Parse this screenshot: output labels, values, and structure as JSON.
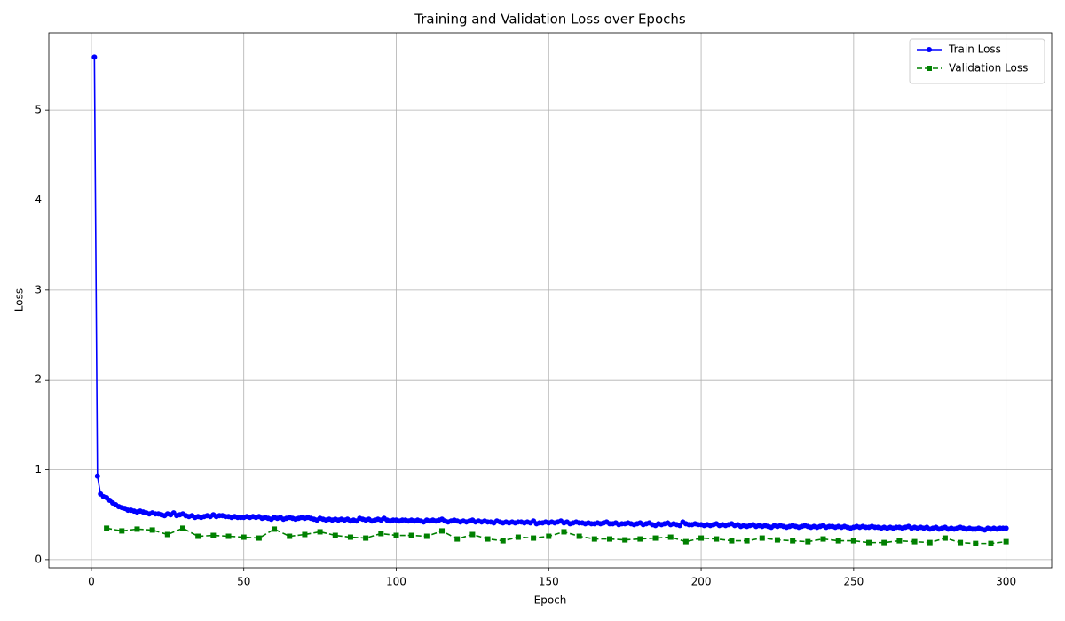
{
  "chart_data": {
    "type": "line",
    "title": "Training and Validation Loss over Epochs",
    "x_label": "Epoch",
    "y_label": "Loss",
    "xlim": [
      -13.95,
      314.95
    ],
    "ylim": [
      -0.09,
      5.86
    ],
    "xticks": [
      0,
      50,
      100,
      150,
      200,
      250,
      300
    ],
    "yticks": [
      0,
      1,
      2,
      3,
      4,
      5
    ],
    "grid": true,
    "legend": "upper right",
    "series": [
      {
        "name": "Train Loss",
        "color": "#0000ff",
        "marker": "circle",
        "linestyle": "solid",
        "x": [
          1,
          2,
          3,
          4,
          5,
          6,
          7,
          8,
          9,
          10,
          11,
          12,
          13,
          14,
          15,
          16,
          17,
          18,
          19,
          20,
          21,
          22,
          23,
          24,
          25,
          26,
          27,
          28,
          29,
          30,
          31,
          32,
          33,
          34,
          35,
          36,
          37,
          38,
          39,
          40,
          41,
          42,
          43,
          44,
          45,
          46,
          47,
          48,
          49,
          50,
          51,
          52,
          53,
          54,
          55,
          56,
          57,
          58,
          59,
          60,
          61,
          62,
          63,
          64,
          65,
          66,
          67,
          68,
          69,
          70,
          71,
          72,
          73,
          74,
          75,
          76,
          77,
          78,
          79,
          80,
          81,
          82,
          83,
          84,
          85,
          86,
          87,
          88,
          89,
          90,
          91,
          92,
          93,
          94,
          95,
          96,
          97,
          98,
          99,
          100,
          101,
          102,
          103,
          104,
          105,
          106,
          107,
          108,
          109,
          110,
          111,
          112,
          113,
          114,
          115,
          116,
          117,
          118,
          119,
          120,
          121,
          122,
          123,
          124,
          125,
          126,
          127,
          128,
          129,
          130,
          131,
          132,
          133,
          134,
          135,
          136,
          137,
          138,
          139,
          140,
          141,
          142,
          143,
          144,
          145,
          146,
          147,
          148,
          149,
          150,
          151,
          152,
          153,
          154,
          155,
          156,
          157,
          158,
          159,
          160,
          161,
          162,
          163,
          164,
          165,
          166,
          167,
          168,
          169,
          170,
          171,
          172,
          173,
          174,
          175,
          176,
          177,
          178,
          179,
          180,
          181,
          182,
          183,
          184,
          185,
          186,
          187,
          188,
          189,
          190,
          191,
          192,
          193,
          194,
          195,
          196,
          197,
          198,
          199,
          200,
          201,
          202,
          203,
          204,
          205,
          206,
          207,
          208,
          209,
          210,
          211,
          212,
          213,
          214,
          215,
          216,
          217,
          218,
          219,
          220,
          221,
          222,
          223,
          224,
          225,
          226,
          227,
          228,
          229,
          230,
          231,
          232,
          233,
          234,
          235,
          236,
          237,
          238,
          239,
          240,
          241,
          242,
          243,
          244,
          245,
          246,
          247,
          248,
          249,
          250,
          251,
          252,
          253,
          254,
          255,
          256,
          257,
          258,
          259,
          260,
          261,
          262,
          263,
          264,
          265,
          266,
          267,
          268,
          269,
          270,
          271,
          272,
          273,
          274,
          275,
          276,
          277,
          278,
          279,
          280,
          281,
          282,
          283,
          284,
          285,
          286,
          287,
          288,
          289,
          290,
          291,
          292,
          293,
          294,
          295,
          296,
          297,
          298,
          299,
          300
        ],
        "values": [
          5.59,
          0.93,
          0.73,
          0.7,
          0.69,
          0.66,
          0.63,
          0.61,
          0.59,
          0.58,
          0.57,
          0.55,
          0.55,
          0.54,
          0.53,
          0.54,
          0.53,
          0.52,
          0.51,
          0.52,
          0.51,
          0.51,
          0.5,
          0.49,
          0.51,
          0.5,
          0.52,
          0.49,
          0.5,
          0.51,
          0.49,
          0.48,
          0.49,
          0.47,
          0.48,
          0.47,
          0.48,
          0.49,
          0.48,
          0.5,
          0.48,
          0.49,
          0.49,
          0.48,
          0.48,
          0.47,
          0.48,
          0.47,
          0.47,
          0.47,
          0.48,
          0.47,
          0.48,
          0.47,
          0.48,
          0.46,
          0.47,
          0.46,
          0.45,
          0.47,
          0.46,
          0.47,
          0.45,
          0.46,
          0.47,
          0.46,
          0.45,
          0.46,
          0.47,
          0.46,
          0.47,
          0.46,
          0.45,
          0.44,
          0.46,
          0.45,
          0.44,
          0.45,
          0.44,
          0.45,
          0.44,
          0.45,
          0.44,
          0.45,
          0.43,
          0.44,
          0.43,
          0.46,
          0.45,
          0.44,
          0.45,
          0.43,
          0.44,
          0.45,
          0.44,
          0.46,
          0.44,
          0.43,
          0.44,
          0.44,
          0.43,
          0.44,
          0.44,
          0.43,
          0.44,
          0.43,
          0.44,
          0.43,
          0.42,
          0.44,
          0.43,
          0.44,
          0.43,
          0.44,
          0.45,
          0.43,
          0.42,
          0.43,
          0.44,
          0.43,
          0.42,
          0.43,
          0.42,
          0.43,
          0.44,
          0.42,
          0.43,
          0.42,
          0.43,
          0.42,
          0.42,
          0.41,
          0.43,
          0.42,
          0.41,
          0.42,
          0.41,
          0.42,
          0.41,
          0.42,
          0.42,
          0.41,
          0.42,
          0.41,
          0.43,
          0.4,
          0.41,
          0.41,
          0.42,
          0.41,
          0.42,
          0.41,
          0.42,
          0.43,
          0.41,
          0.42,
          0.4,
          0.41,
          0.42,
          0.41,
          0.41,
          0.4,
          0.41,
          0.4,
          0.4,
          0.41,
          0.4,
          0.41,
          0.42,
          0.4,
          0.4,
          0.41,
          0.39,
          0.4,
          0.4,
          0.41,
          0.4,
          0.39,
          0.4,
          0.41,
          0.39,
          0.4,
          0.41,
          0.39,
          0.38,
          0.4,
          0.39,
          0.4,
          0.41,
          0.39,
          0.4,
          0.39,
          0.38,
          0.42,
          0.4,
          0.39,
          0.39,
          0.4,
          0.39,
          0.39,
          0.38,
          0.39,
          0.38,
          0.39,
          0.4,
          0.38,
          0.39,
          0.38,
          0.39,
          0.4,
          0.38,
          0.39,
          0.37,
          0.38,
          0.37,
          0.38,
          0.39,
          0.37,
          0.38,
          0.37,
          0.38,
          0.37,
          0.36,
          0.38,
          0.37,
          0.38,
          0.37,
          0.36,
          0.37,
          0.38,
          0.37,
          0.36,
          0.37,
          0.38,
          0.37,
          0.36,
          0.37,
          0.36,
          0.37,
          0.38,
          0.36,
          0.37,
          0.37,
          0.36,
          0.37,
          0.36,
          0.37,
          0.36,
          0.35,
          0.36,
          0.37,
          0.36,
          0.37,
          0.36,
          0.36,
          0.37,
          0.36,
          0.36,
          0.35,
          0.36,
          0.35,
          0.36,
          0.35,
          0.36,
          0.36,
          0.35,
          0.36,
          0.37,
          0.35,
          0.36,
          0.35,
          0.36,
          0.35,
          0.36,
          0.34,
          0.35,
          0.36,
          0.34,
          0.35,
          0.36,
          0.34,
          0.35,
          0.34,
          0.35,
          0.36,
          0.35,
          0.34,
          0.35,
          0.34,
          0.34,
          0.35,
          0.34,
          0.33,
          0.35,
          0.34,
          0.35,
          0.34,
          0.35,
          0.35,
          0.35
        ]
      },
      {
        "name": "Validation Loss",
        "color": "#008000",
        "marker": "square",
        "linestyle": "dashed",
        "x": [
          5,
          10,
          15,
          20,
          25,
          30,
          35,
          40,
          45,
          50,
          55,
          60,
          65,
          70,
          75,
          80,
          85,
          90,
          95,
          100,
          105,
          110,
          115,
          120,
          125,
          130,
          135,
          140,
          145,
          150,
          155,
          160,
          165,
          170,
          175,
          180,
          185,
          190,
          195,
          200,
          205,
          210,
          215,
          220,
          225,
          230,
          235,
          240,
          245,
          250,
          255,
          260,
          265,
          270,
          275,
          280,
          285,
          290,
          295,
          300
        ],
        "values": [
          0.35,
          0.32,
          0.34,
          0.33,
          0.28,
          0.35,
          0.26,
          0.27,
          0.26,
          0.25,
          0.24,
          0.34,
          0.26,
          0.28,
          0.31,
          0.27,
          0.25,
          0.24,
          0.29,
          0.27,
          0.27,
          0.26,
          0.32,
          0.23,
          0.28,
          0.23,
          0.21,
          0.25,
          0.24,
          0.26,
          0.31,
          0.26,
          0.23,
          0.23,
          0.22,
          0.23,
          0.24,
          0.25,
          0.2,
          0.24,
          0.23,
          0.21,
          0.21,
          0.24,
          0.22,
          0.21,
          0.2,
          0.23,
          0.21,
          0.21,
          0.19,
          0.19,
          0.21,
          0.2,
          0.19,
          0.24,
          0.19,
          0.18,
          0.18,
          0.2
        ]
      }
    ]
  }
}
